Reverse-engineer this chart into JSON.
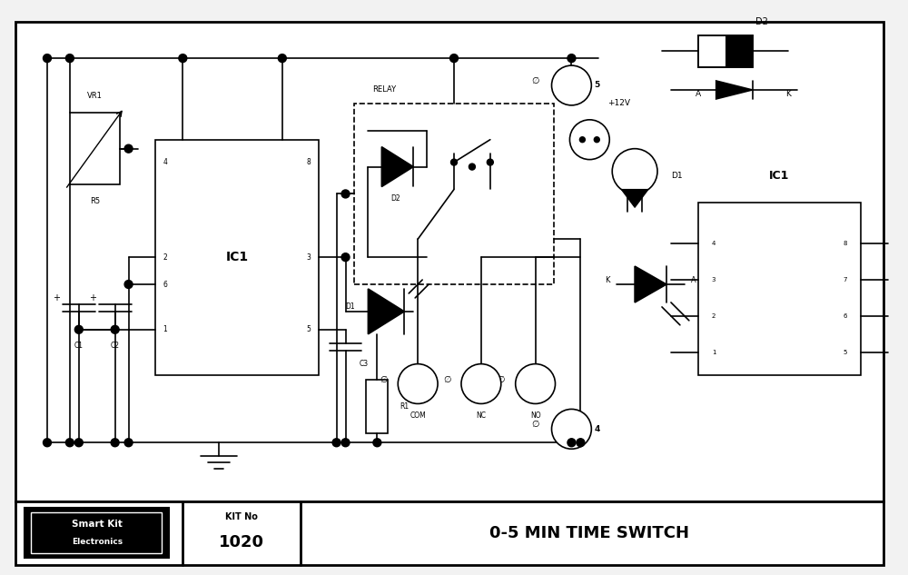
{
  "bg_color": "#f2f2f2",
  "border_color": "#000000",
  "line_color": "#000000",
  "title_text": "0-5 MIN TIME SWITCH",
  "kit_no": "1020",
  "kit_no_label": "KIT No",
  "brand_line1": "Smart Kit",
  "brand_line2": "Electronics",
  "fig_width": 10.0,
  "fig_height": 6.33
}
